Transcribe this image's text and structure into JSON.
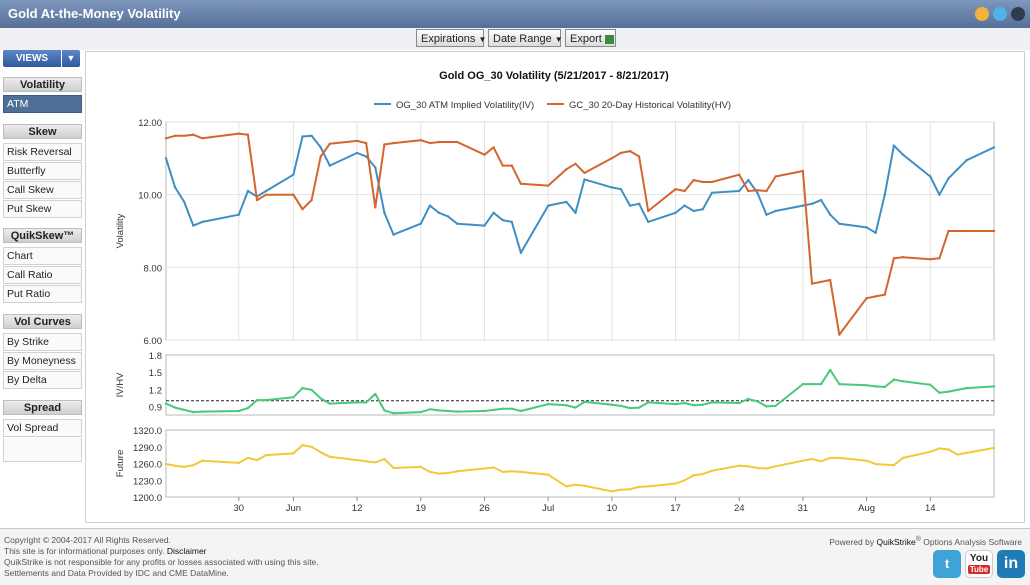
{
  "app": {
    "title": "Gold At-the-Money Volatility"
  },
  "toolbar": {
    "expirations": "Expirations",
    "date_range": "Date Range",
    "export": "Export"
  },
  "sidebar": {
    "views_label": "VIEWS",
    "volatility": {
      "title": "Volatility",
      "items": [
        "ATM"
      ]
    },
    "skew": {
      "title": "Skew",
      "items": [
        "Risk Reversal",
        "Butterfly",
        "Call Skew",
        "Put Skew"
      ]
    },
    "quikskew": {
      "title": "QuikSkew™",
      "items": [
        "Chart",
        "Call Ratio",
        "Put Ratio"
      ]
    },
    "volcurves": {
      "title": "Vol Curves",
      "items": [
        "By Strike",
        "By Moneyness",
        "By Delta"
      ]
    },
    "spread": {
      "title": "Spread",
      "items": [
        "Vol Spread"
      ]
    }
  },
  "chart_data": {
    "type": "line",
    "title": "Gold OG_30 Volatility (5/21/2017 - 8/21/2017)",
    "x_tick_labels": [
      "30",
      "Jun",
      "12",
      "19",
      "26",
      "Jul",
      "10",
      "17",
      "24",
      "31",
      "Aug",
      "14"
    ],
    "x_range": [
      "2017-05-22",
      "2017-08-21"
    ],
    "panels": [
      {
        "id": "volatility",
        "ylabel": "Volatility",
        "ylim": [
          6,
          12
        ],
        "ticks": [
          "12.00",
          "10.00",
          "8.00",
          "6.00"
        ],
        "grid": true,
        "series": [
          {
            "name": "OG_30 ATM Implied Volatility(IV)",
            "color": "#3f8fc4",
            "x": [
              "2017-05-22",
              "2017-05-23",
              "2017-05-24",
              "2017-05-25",
              "2017-05-26",
              "2017-05-30",
              "2017-05-31",
              "2017-06-01",
              "2017-06-02",
              "2017-06-05",
              "2017-06-06",
              "2017-06-07",
              "2017-06-08",
              "2017-06-09",
              "2017-06-12",
              "2017-06-13",
              "2017-06-14",
              "2017-06-15",
              "2017-06-16",
              "2017-06-19",
              "2017-06-20",
              "2017-06-21",
              "2017-06-22",
              "2017-06-23",
              "2017-06-26",
              "2017-06-27",
              "2017-06-28",
              "2017-06-29",
              "2017-06-30",
              "2017-07-03",
              "2017-07-05",
              "2017-07-06",
              "2017-07-07",
              "2017-07-10",
              "2017-07-11",
              "2017-07-12",
              "2017-07-13",
              "2017-07-14",
              "2017-07-17",
              "2017-07-18",
              "2017-07-19",
              "2017-07-20",
              "2017-07-21",
              "2017-07-24",
              "2017-07-25",
              "2017-07-26",
              "2017-07-27",
              "2017-07-28",
              "2017-07-31",
              "2017-08-01",
              "2017-08-02",
              "2017-08-03",
              "2017-08-04",
              "2017-08-07",
              "2017-08-08",
              "2017-08-09",
              "2017-08-10",
              "2017-08-11",
              "2017-08-14",
              "2017-08-15",
              "2017-08-16",
              "2017-08-17",
              "2017-08-18",
              "2017-08-21"
            ],
            "values": [
              11.0,
              10.2,
              9.8,
              9.15,
              9.25,
              9.45,
              10.1,
              9.95,
              10.1,
              10.55,
              11.6,
              11.62,
              11.3,
              10.8,
              11.15,
              11.05,
              10.75,
              9.5,
              8.9,
              9.2,
              9.7,
              9.5,
              9.4,
              9.2,
              9.15,
              9.5,
              9.3,
              9.25,
              8.4,
              9.7,
              9.8,
              9.5,
              10.42,
              10.2,
              10.15,
              9.7,
              9.75,
              9.25,
              9.5,
              9.7,
              9.55,
              9.6,
              10.05,
              10.1,
              10.4,
              10.05,
              9.45,
              9.55,
              9.7,
              9.75,
              9.85,
              9.45,
              9.2,
              9.1,
              8.95,
              10.0,
              11.35,
              11.1,
              10.5,
              10.0,
              10.45,
              10.7,
              10.95,
              11.3
            ]
          },
          {
            "name": "GC_30 20-Day Historical Volatility(HV)",
            "color": "#d3662e",
            "x": [
              "2017-05-22",
              "2017-05-23",
              "2017-05-24",
              "2017-05-25",
              "2017-05-26",
              "2017-05-30",
              "2017-05-31",
              "2017-06-01",
              "2017-06-02",
              "2017-06-05",
              "2017-06-06",
              "2017-06-07",
              "2017-06-08",
              "2017-06-09",
              "2017-06-12",
              "2017-06-13",
              "2017-06-14",
              "2017-06-15",
              "2017-06-16",
              "2017-06-19",
              "2017-06-20",
              "2017-06-21",
              "2017-06-22",
              "2017-06-23",
              "2017-06-26",
              "2017-06-27",
              "2017-06-28",
              "2017-06-29",
              "2017-06-30",
              "2017-07-03",
              "2017-07-05",
              "2017-07-06",
              "2017-07-07",
              "2017-07-10",
              "2017-07-11",
              "2017-07-12",
              "2017-07-13",
              "2017-07-14",
              "2017-07-17",
              "2017-07-18",
              "2017-07-19",
              "2017-07-20",
              "2017-07-21",
              "2017-07-24",
              "2017-07-25",
              "2017-07-26",
              "2017-07-27",
              "2017-07-28",
              "2017-07-31",
              "2017-08-01",
              "2017-08-02",
              "2017-08-03",
              "2017-08-04",
              "2017-08-07",
              "2017-08-08",
              "2017-08-09",
              "2017-08-10",
              "2017-08-11",
              "2017-08-14",
              "2017-08-15",
              "2017-08-16",
              "2017-08-17",
              "2017-08-18",
              "2017-08-21"
            ],
            "values": [
              11.55,
              11.62,
              11.62,
              11.65,
              11.55,
              11.68,
              11.65,
              9.85,
              10.0,
              10.0,
              9.6,
              9.85,
              11.05,
              11.4,
              11.48,
              11.42,
              9.65,
              11.38,
              11.42,
              11.5,
              11.42,
              11.45,
              11.45,
              11.45,
              11.1,
              11.3,
              10.8,
              10.8,
              10.3,
              10.25,
              10.7,
              10.85,
              10.6,
              11.0,
              11.15,
              11.2,
              11.05,
              9.55,
              10.15,
              10.1,
              10.4,
              10.35,
              10.35,
              10.55,
              10.1,
              10.12,
              10.1,
              10.5,
              10.65,
              7.55,
              7.6,
              7.65,
              6.15,
              7.15,
              7.2,
              7.25,
              8.25,
              8.28,
              8.22,
              8.25,
              9.0,
              9.0,
              9.0,
              9.0
            ]
          }
        ]
      },
      {
        "id": "ivhv",
        "ylabel": "IV/HV",
        "ylim": [
          0.75,
          1.8
        ],
        "ticks": [
          "1.8",
          "1.5",
          "1.2",
          "0.9"
        ],
        "reference_line": 1.0,
        "series": [
          {
            "name": "IV/HV",
            "color": "#49c97a",
            "values": [
              0.95,
              0.88,
              0.84,
              0.8,
              0.81,
              0.82,
              0.87,
              1.01,
              1.01,
              1.06,
              1.22,
              1.19,
              1.04,
              0.95,
              0.97,
              0.97,
              1.12,
              0.83,
              0.78,
              0.8,
              0.85,
              0.83,
              0.82,
              0.81,
              0.82,
              0.84,
              0.86,
              0.86,
              0.82,
              0.94,
              0.92,
              0.88,
              0.98,
              0.93,
              0.91,
              0.87,
              0.88,
              0.97,
              0.94,
              0.96,
              0.92,
              0.93,
              0.97,
              0.96,
              1.03,
              0.99,
              0.9,
              0.91,
              1.29,
              1.29,
              1.29,
              1.54,
              1.29,
              1.27,
              1.25,
              1.24,
              1.37,
              1.34,
              1.28,
              1.14,
              1.16,
              1.19,
              1.22,
              1.25
            ]
          }
        ]
      },
      {
        "id": "future",
        "ylabel": "Future",
        "ylim": [
          1200,
          1320
        ],
        "ticks": [
          "1320.0",
          "1290.0",
          "1260.0",
          "1230.0",
          "1200.0"
        ],
        "series": [
          {
            "name": "Future",
            "color": "#f2c93a",
            "values": [
              1259,
              1256,
              1254,
              1257,
              1265,
              1261,
              1270,
              1266,
              1275,
              1278,
              1293,
              1290,
              1280,
              1272,
              1266,
              1264,
              1262,
              1268,
              1252,
              1254,
              1245,
              1242,
              1243,
              1246,
              1251,
              1253,
              1245,
              1246,
              1245,
              1240,
              1219,
              1222,
              1220,
              1210,
              1213,
              1214,
              1218,
              1219,
              1224,
              1230,
              1239,
              1241,
              1247,
              1256,
              1255,
              1252,
              1251,
              1255,
              1265,
              1268,
              1264,
              1270,
              1270,
              1265,
              1259,
              1258,
              1257,
              1270,
              1281,
              1287,
              1285,
              1276,
              1279,
              1288
            ]
          }
        ]
      }
    ]
  },
  "footer": {
    "copyright": "Copyright © 2004-2017 All Rights Reserved.",
    "info_prefix": "This site is for informational purposes only.",
    "disclaimer": "Disclaimer",
    "liability": "QuikStrike is not responsible for any profits or losses associated with using this site.",
    "settlements": "Settlements and Data Provided by IDC and CME DataMine.",
    "powered_prefix": "Powered by",
    "powered_brand": "QuikStrike",
    "powered_reg": "®",
    "powered_suffix": "Options Analysis Software",
    "social_twitter": "t",
    "social_youtube_top": "You",
    "social_youtube_bottom": "Tube",
    "social_linkedin": "in"
  },
  "colors": {
    "titlebar": "#6a83ac",
    "views_button": "#3f6bb0",
    "active_item": "#4f6f96",
    "iv": "#3f8fc4",
    "hv": "#d3662e",
    "ratio": "#49c97a",
    "future": "#f2c93a"
  }
}
